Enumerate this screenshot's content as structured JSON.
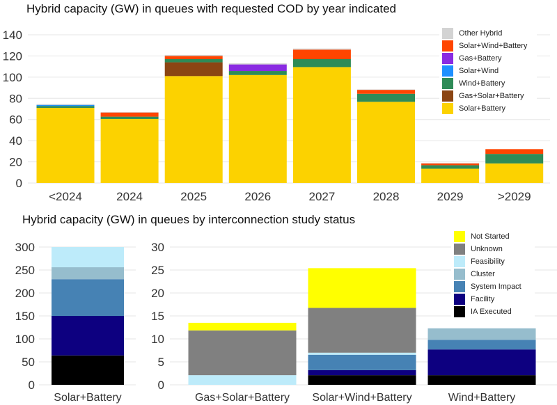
{
  "chart_data": [
    {
      "type": "bar",
      "stacked": true,
      "title": "Hybrid capacity (GW) in queues with requested COD by year indicated",
      "xlabel": "",
      "ylabel": "",
      "ylim": [
        0,
        140
      ],
      "yticks": [
        0,
        20,
        40,
        60,
        80,
        100,
        120,
        140
      ],
      "grid": true,
      "legend_position": "top-right",
      "categories": [
        "<2024",
        "2024",
        "2025",
        "2026",
        "2027",
        "2028",
        "2029",
        ">2029"
      ],
      "series": [
        {
          "name": "Solar+Battery",
          "color": "#FCD200",
          "values": [
            71,
            60.5,
            101,
            102,
            109.5,
            76.7,
            13.5,
            18.5
          ]
        },
        {
          "name": "Gas+Solar+Battery",
          "color": "#8B4513",
          "values": [
            0,
            0,
            13,
            0,
            0,
            0,
            0,
            0
          ]
        },
        {
          "name": "Wind+Battery",
          "color": "#2E8B57",
          "values": [
            1.8,
            2.2,
            3,
            3.8,
            7.5,
            7.6,
            3.3,
            9
          ]
        },
        {
          "name": "Solar+Wind",
          "color": "#1E90FF",
          "values": [
            1,
            0,
            0,
            0,
            0,
            0,
            0,
            0
          ]
        },
        {
          "name": "Gas+Battery",
          "color": "#8A2BE2",
          "values": [
            0,
            0,
            0,
            6.2,
            0,
            0,
            0,
            0
          ]
        },
        {
          "name": "Solar+Wind+Battery",
          "color": "#FF4500",
          "values": [
            0,
            3.9,
            3,
            0,
            9,
            3.7,
            1.7,
            4.5
          ]
        },
        {
          "name": "Other Hybrid",
          "color": "#D3D3D3",
          "values": [
            0.7,
            0.4,
            1,
            1,
            1,
            0.4,
            0.5,
            0
          ]
        }
      ]
    },
    {
      "type": "bar",
      "stacked": true,
      "title": "Hybrid capacity (GW) in queues by interconnection study status",
      "panels": [
        {
          "ylim": [
            0,
            300
          ],
          "yticks": [
            0,
            50,
            100,
            150,
            200,
            250,
            300
          ],
          "categories": [
            "Solar+Battery"
          ]
        },
        {
          "ylim": [
            0,
            30
          ],
          "yticks": [
            0,
            5,
            10,
            15,
            20,
            25,
            30
          ],
          "categories": [
            "Gas+Solar+Battery",
            "Solar+Wind+Battery",
            "Wind+Battery"
          ]
        }
      ],
      "grid": true,
      "legend_position": "top-right",
      "series": [
        {
          "name": "IA Executed",
          "color": "#000000",
          "values": [
            64,
            0,
            2.1,
            2.1
          ]
        },
        {
          "name": "Facility",
          "color": "#0D0080",
          "values": [
            86,
            0,
            1.1,
            5.6
          ]
        },
        {
          "name": "System Impact",
          "color": "#4682B4",
          "values": [
            80,
            0,
            3.35,
            2.1
          ]
        },
        {
          "name": "Cluster",
          "color": "#96BDCD",
          "values": [
            26,
            0,
            0,
            2.5
          ]
        },
        {
          "name": "Feasibility",
          "color": "#BDEBFA",
          "values": [
            44,
            2.1,
            0.45,
            0
          ]
        },
        {
          "name": "Unknown",
          "color": "#808080",
          "values": [
            0,
            9.75,
            9.75,
            0
          ]
        },
        {
          "name": "Not Started",
          "color": "#FFFF00",
          "values": [
            0,
            1.65,
            8.65,
            0
          ]
        }
      ]
    }
  ]
}
